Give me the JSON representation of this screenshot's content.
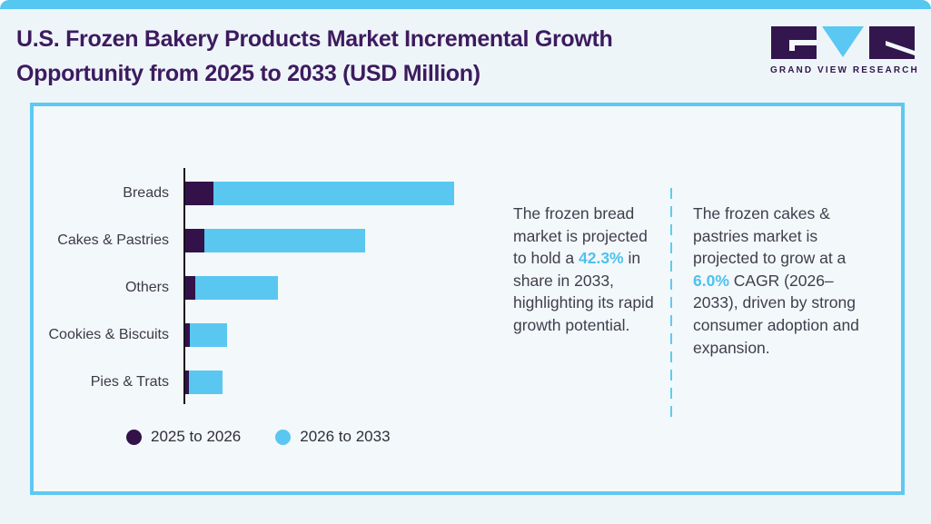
{
  "header": {
    "title_line1": "U.S. Frozen Bakery Products Market Incremental Growth",
    "title_line2": "Opportunity from 2025 to 2033 (USD Million)",
    "logo": {
      "brand": "GRAND VIEW RESEARCH",
      "monogram": "GVR"
    }
  },
  "chart_data": {
    "type": "bar",
    "orientation": "horizontal",
    "title": "U.S. Frozen Bakery Products Market Incremental Growth Opportunity from 2025 to 2033 (USD Million)",
    "units": "USD Million",
    "value_axis_ticks": "none shown; stacked segment lengths estimated from pixels (relative units)",
    "categories": [
      "Breads",
      "Cakes & Pastries",
      "Others",
      "Cookies & Biscuits",
      "Pies & Trats"
    ],
    "series": [
      {
        "name": "2025 to 2026",
        "color": "#331249",
        "values": [
          31,
          21,
          11,
          5,
          4
        ]
      },
      {
        "name": "2026 to 2033",
        "color": "#5ac7f1",
        "values": [
          265,
          177,
          91,
          41,
          37
        ]
      }
    ],
    "legend_position": "bottom-left",
    "grid": false
  },
  "notes": {
    "bread": {
      "before": "The frozen bread market is projected to hold a ",
      "accent": "42.3%",
      "after": " in share in 2033, highlighting its rapid growth potential."
    },
    "cakes": {
      "before": "The frozen cakes & pastries market is projected to grow at a ",
      "accent": "6.0%",
      "after": " CAGR (2026–2033), driven by strong consumer adoption and expansion."
    }
  },
  "colors": {
    "title_purple": "#3d1b5f",
    "bar_dark_purple": "#331249",
    "bar_light_blue": "#5ac7f1",
    "accent_text_blue": "#4ec1ee",
    "card_border_blue": "#5dc9f2",
    "topbar_blue": "#55c7f1",
    "axis_black": "#15121d",
    "body_text": "#403e4c",
    "page_background": "#eef5f9",
    "card_background": "#f3f8fb"
  }
}
